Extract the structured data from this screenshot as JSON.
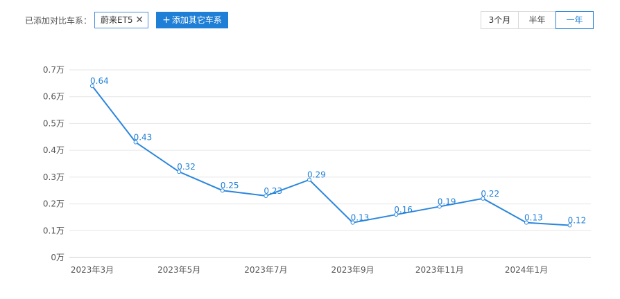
{
  "toolbar": {
    "compare_label": "已添加对比车系：",
    "chip_label": "蔚来ET5",
    "chip_close": "✕",
    "add_button": "添加其它车系",
    "add_icon": "+",
    "ranges": [
      "3个月",
      "半年",
      "一年"
    ],
    "active_range": "一年"
  },
  "colors": {
    "accent": "#1f7fd6",
    "line": "#2a86dd",
    "grid": "#e6e6e6"
  },
  "chart_data": {
    "type": "line",
    "series": [
      {
        "values": [
          0.64,
          0.43,
          0.32,
          0.25,
          0.23,
          0.29,
          0.13,
          0.16,
          0.19,
          0.22,
          0.13,
          0.12
        ]
      }
    ],
    "x_tick_labels": [
      "2023年3月",
      "2023年5月",
      "2023年7月",
      "2023年9月",
      "2023年11月",
      "2024年1月"
    ],
    "y_tick_labels": [
      "0万",
      "0.1万",
      "0.2万",
      "0.3万",
      "0.4万",
      "0.5万",
      "0.6万",
      "0.7万"
    ],
    "ylim": [
      0,
      0.7
    ],
    "grid": true,
    "data_labels": true
  }
}
